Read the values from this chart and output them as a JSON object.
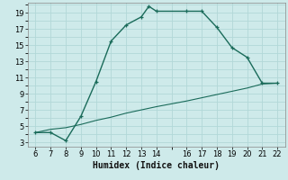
{
  "xlabel": "Humidex (Indice chaleur)",
  "bg_color": "#ceeaea",
  "grid_color": "#b2d8d8",
  "line_color": "#1a6b5a",
  "xlim": [
    5.5,
    22.5
  ],
  "ylim": [
    2.5,
    20.2
  ],
  "xticks": [
    6,
    7,
    8,
    9,
    10,
    11,
    12,
    13,
    14,
    16,
    17,
    18,
    19,
    20,
    21,
    22
  ],
  "yticks": [
    3,
    5,
    7,
    9,
    11,
    13,
    15,
    17,
    19
  ],
  "curve1_x": [
    6,
    7,
    8,
    9,
    10,
    11,
    12,
    13,
    13.5,
    14,
    16,
    17,
    18,
    19,
    20,
    21,
    22
  ],
  "curve1_y": [
    4.2,
    4.2,
    3.2,
    6.2,
    10.5,
    15.5,
    17.5,
    18.5,
    19.8,
    19.2,
    19.2,
    19.2,
    17.2,
    14.7,
    13.5,
    10.3,
    10.3
  ],
  "curve2_x": [
    6,
    7,
    8,
    9,
    10,
    11,
    12,
    13,
    14,
    16,
    17,
    18,
    19,
    20,
    21,
    22
  ],
  "curve2_y": [
    4.2,
    4.6,
    4.8,
    5.2,
    5.7,
    6.1,
    6.6,
    7.0,
    7.4,
    8.1,
    8.5,
    8.9,
    9.3,
    9.7,
    10.2,
    10.3
  ],
  "xlabel_fontsize": 7,
  "tick_fontsize": 6,
  "linewidth": 1.0,
  "marker_size": 3.5
}
